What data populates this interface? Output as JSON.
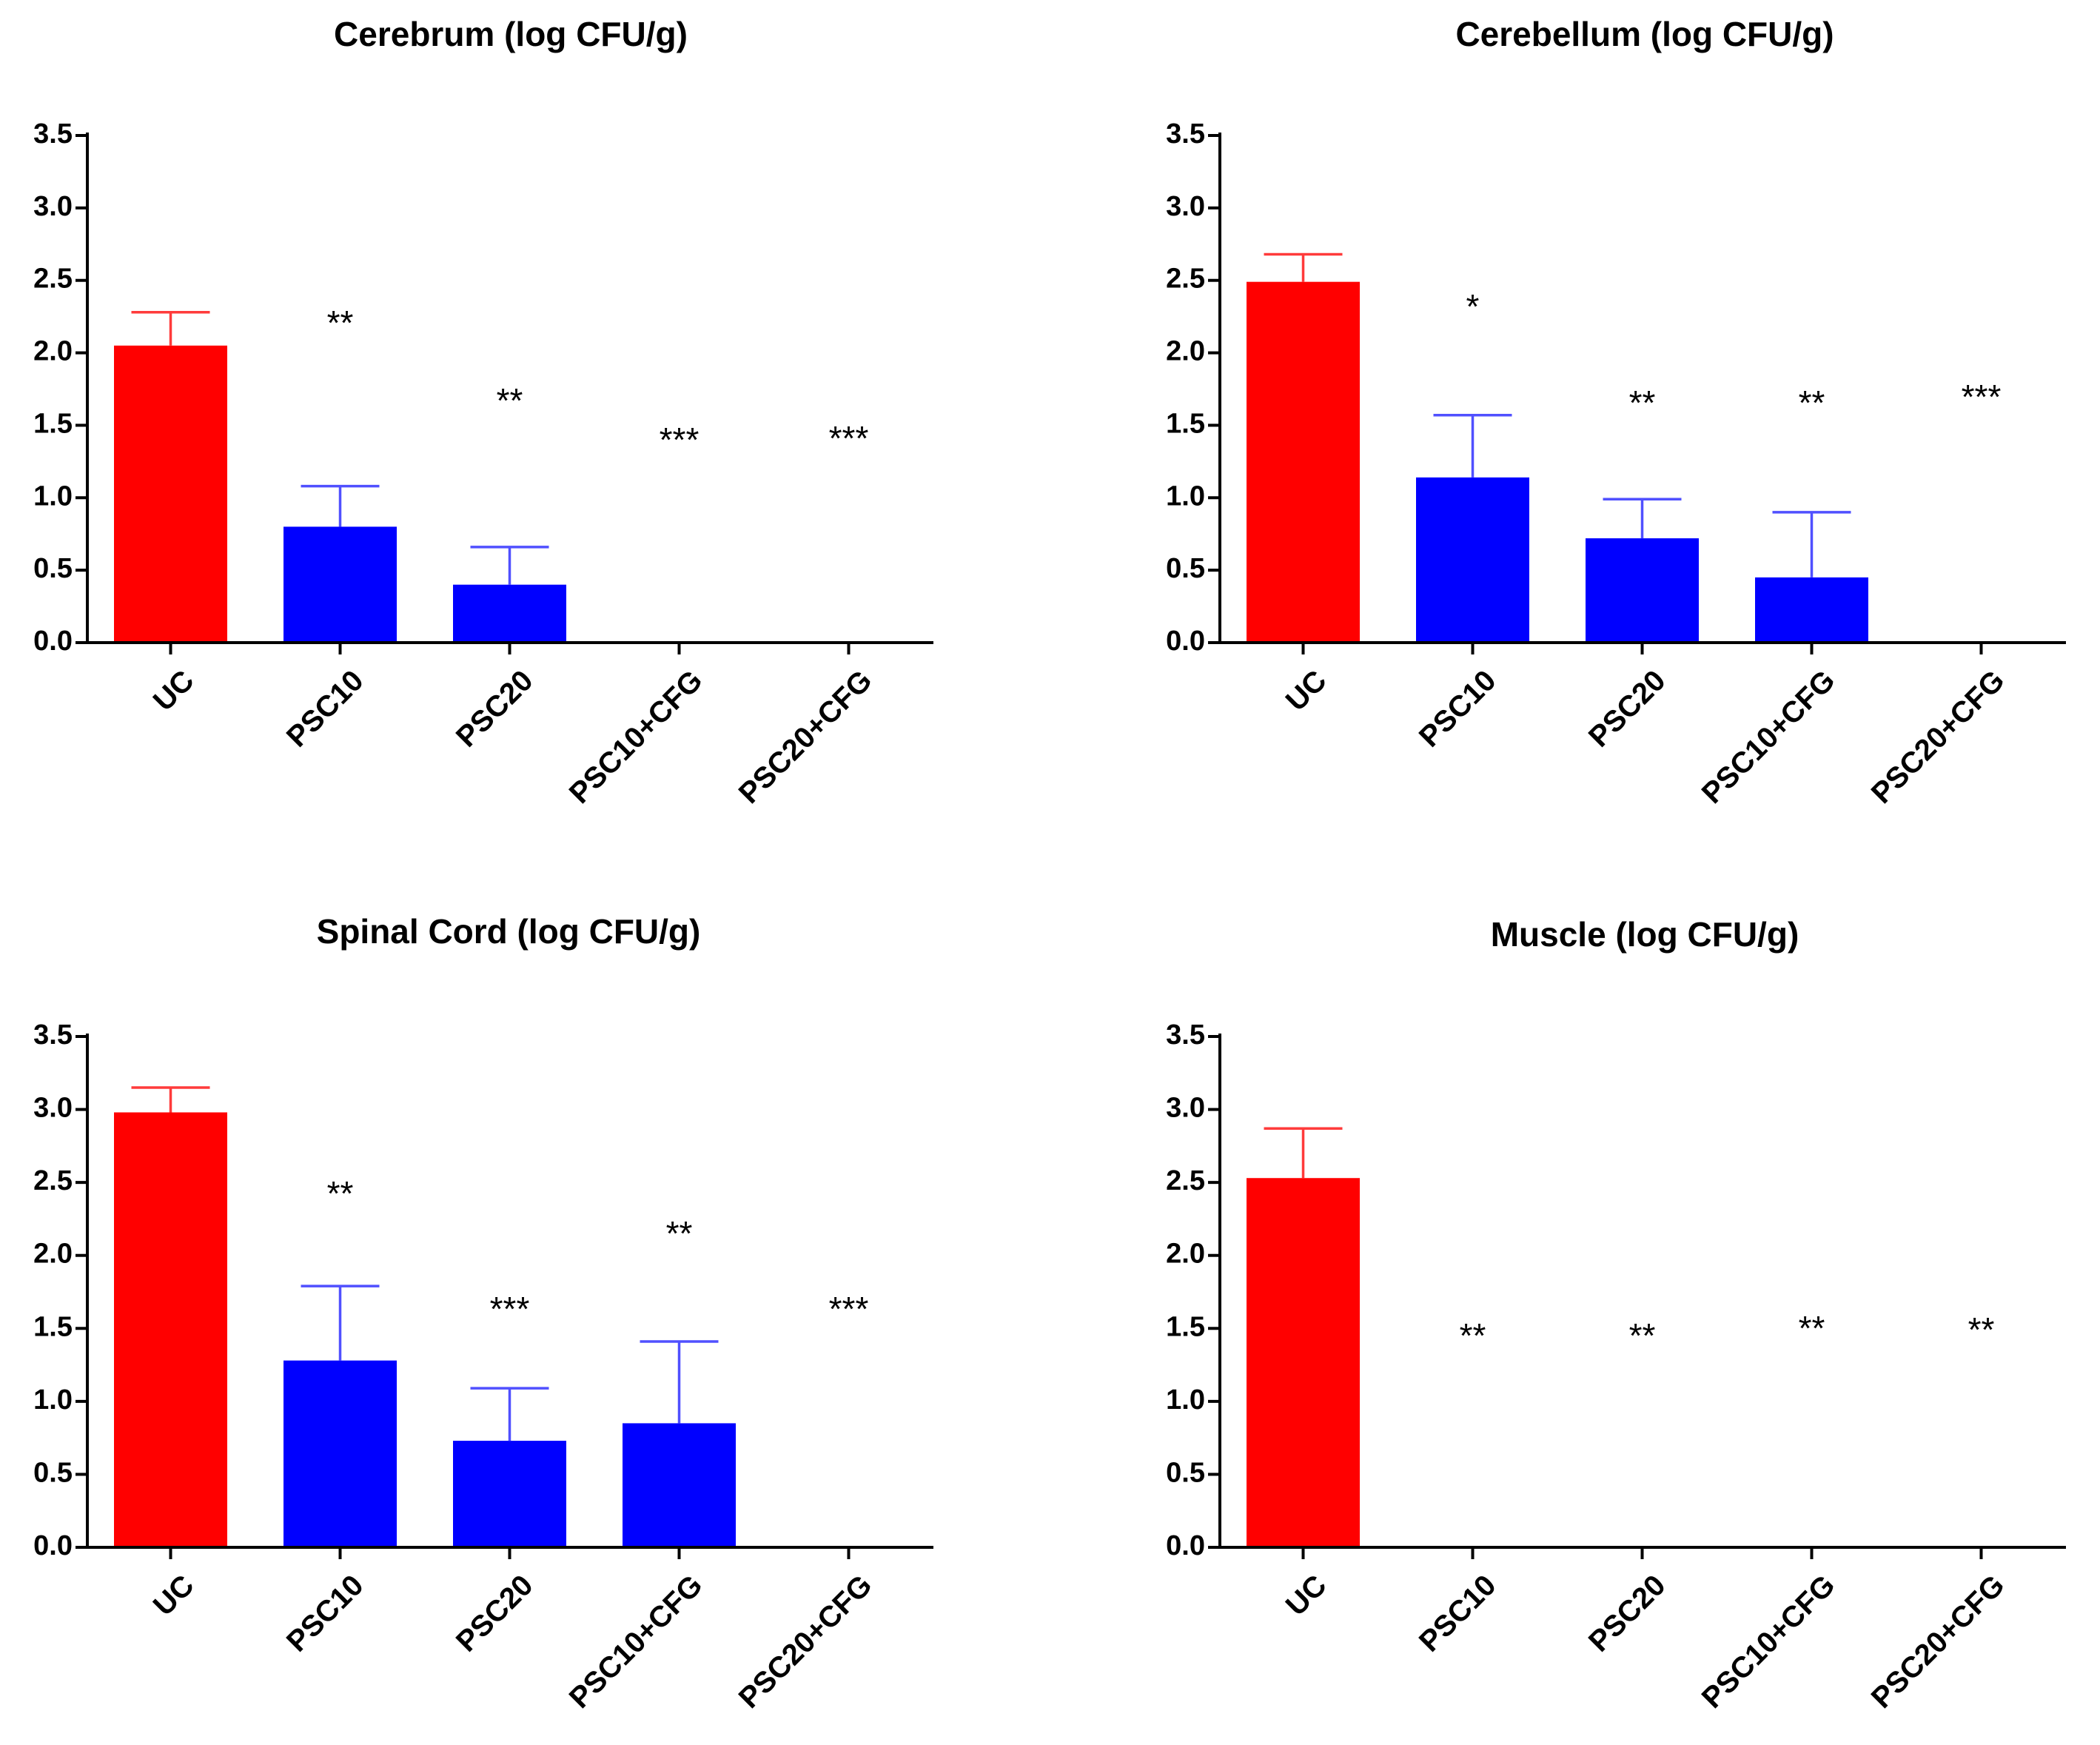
{
  "chart_data": [
    {
      "type": "bar",
      "title": "Cerebrum (log CFU/g)",
      "categories": [
        "UC",
        "PSC10",
        "PSC20",
        "PSC10+CFG",
        "PSC20+CFG"
      ],
      "values": [
        2.05,
        0.8,
        0.4,
        0,
        0
      ],
      "error": [
        0.23,
        0.28,
        0.26,
        0,
        0
      ],
      "significance": [
        "",
        "**",
        "**",
        "***",
        "***"
      ],
      "ylim": [
        0,
        3.5
      ],
      "yticks": [
        "0.0",
        "0.5",
        "1.0",
        "1.5",
        "2.0",
        "2.5",
        "3.0",
        "3.5"
      ],
      "bar_colors": [
        "#ff0000",
        "#0000ff",
        "#0000ff",
        "#0000ff",
        "#0000ff"
      ],
      "error_colors": [
        "#ff3b3b",
        "#5050ff",
        "#5050ff",
        "#5050ff",
        "#5050ff"
      ]
    },
    {
      "type": "bar",
      "title": "Cerebellum (log CFU/g)",
      "categories": [
        "UC",
        "PSC10",
        "PSC20",
        "PSC10+CFG",
        "PSC20+CFG"
      ],
      "values": [
        2.49,
        1.14,
        0.72,
        0.45,
        0
      ],
      "error": [
        0.19,
        0.43,
        0.27,
        0.45,
        0
      ],
      "significance": [
        "",
        "*",
        "**",
        "**",
        "***"
      ],
      "ylim": [
        0,
        3.5
      ],
      "yticks": [
        "0.0",
        "0.5",
        "1.0",
        "1.5",
        "2.0",
        "2.5",
        "3.0",
        "3.5"
      ],
      "bar_colors": [
        "#ff0000",
        "#0000ff",
        "#0000ff",
        "#0000ff",
        "#0000ff"
      ],
      "error_colors": [
        "#ff3b3b",
        "#5050ff",
        "#5050ff",
        "#5050ff",
        "#5050ff"
      ]
    },
    {
      "type": "bar",
      "title": "Spinal Cord (log CFU/g)",
      "categories": [
        "UC",
        "PSC10",
        "PSC20",
        "PSC10+CFG",
        "PSC20+CFG"
      ],
      "values": [
        2.98,
        1.28,
        0.73,
        0.85,
        0
      ],
      "error": [
        0.17,
        0.51,
        0.36,
        0.56,
        0
      ],
      "significance": [
        "",
        "**",
        "***",
        "**",
        "***"
      ],
      "ylim": [
        0,
        3.5
      ],
      "yticks": [
        "0.0",
        "0.5",
        "1.0",
        "1.5",
        "2.0",
        "2.5",
        "3.0",
        "3.5"
      ],
      "bar_colors": [
        "#ff0000",
        "#0000ff",
        "#0000ff",
        "#0000ff",
        "#0000ff"
      ],
      "error_colors": [
        "#ff3b3b",
        "#5050ff",
        "#5050ff",
        "#5050ff",
        "#5050ff"
      ]
    },
    {
      "type": "bar",
      "title": "Muscle (log CFU/g)",
      "categories": [
        "UC",
        "PSC10",
        "PSC20",
        "PSC10+CFG",
        "PSC20+CFG"
      ],
      "values": [
        2.53,
        0,
        0,
        0,
        0
      ],
      "error": [
        0.34,
        0,
        0,
        0,
        0
      ],
      "significance": [
        "",
        "**",
        "**",
        "**",
        "**"
      ],
      "ylim": [
        0,
        3.5
      ],
      "yticks": [
        "0.0",
        "0.5",
        "1.0",
        "1.5",
        "2.0",
        "2.5",
        "3.0",
        "3.5"
      ],
      "bar_colors": [
        "#ff0000",
        "#0000ff",
        "#0000ff",
        "#0000ff",
        "#0000ff"
      ],
      "error_colors": [
        "#ff3b3b",
        "#5050ff",
        "#5050ff",
        "#5050ff",
        "#5050ff"
      ]
    }
  ]
}
